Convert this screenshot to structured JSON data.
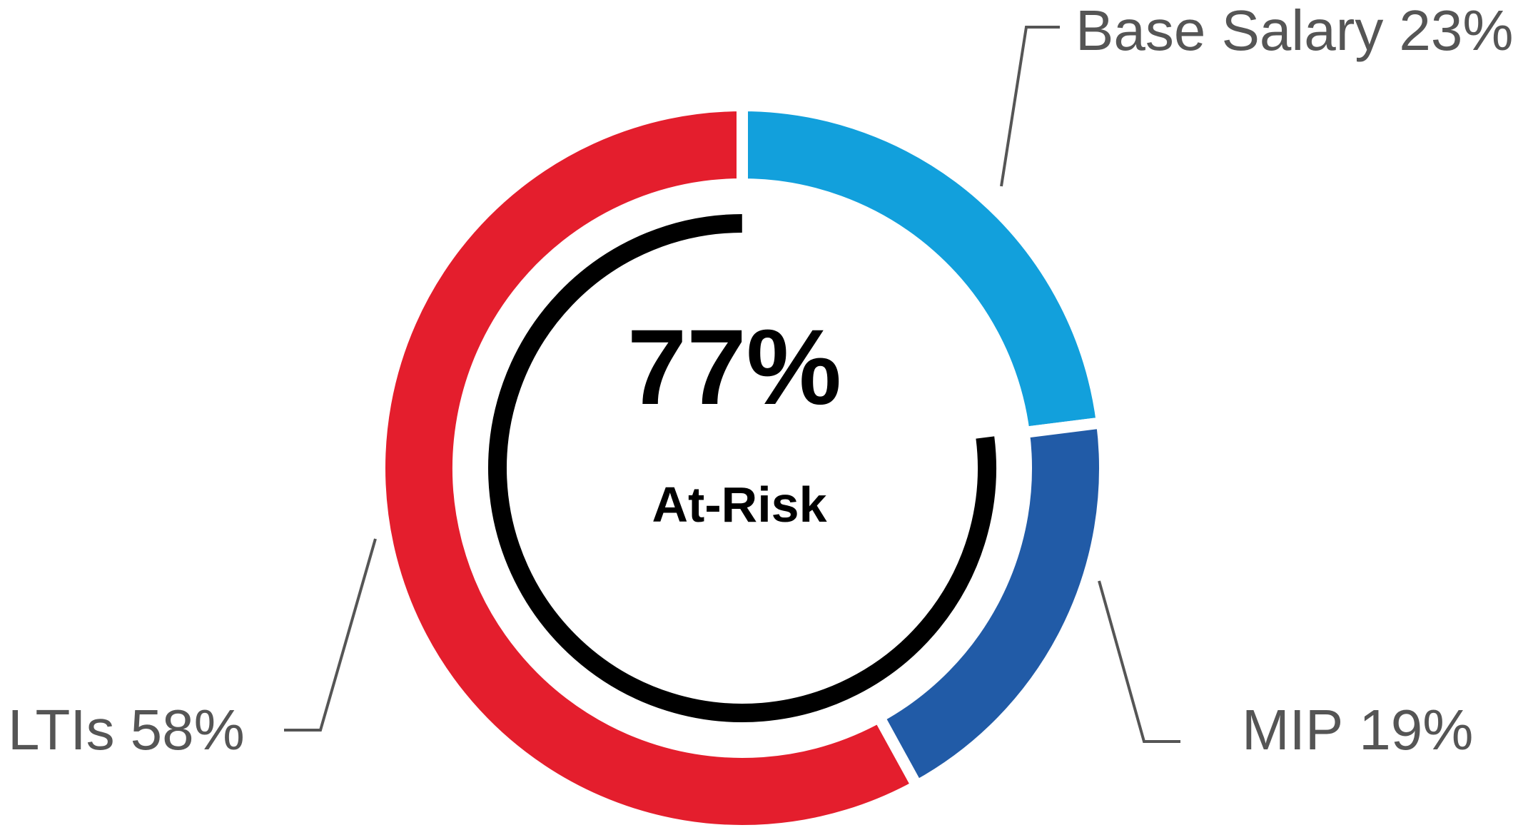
{
  "chart_data": {
    "type": "donut",
    "categories": [
      "Base Salary",
      "MIP",
      "LTIs"
    ],
    "values": [
      23,
      19,
      58
    ],
    "value_labels": [
      "23%",
      "19%",
      "58%"
    ],
    "colors": [
      "#12a0dc",
      "#215ba7",
      "#e41e2d"
    ],
    "annotation": {
      "value": 77,
      "label": "77%",
      "text": "At-Risk"
    },
    "annotation_color": "#000000"
  }
}
